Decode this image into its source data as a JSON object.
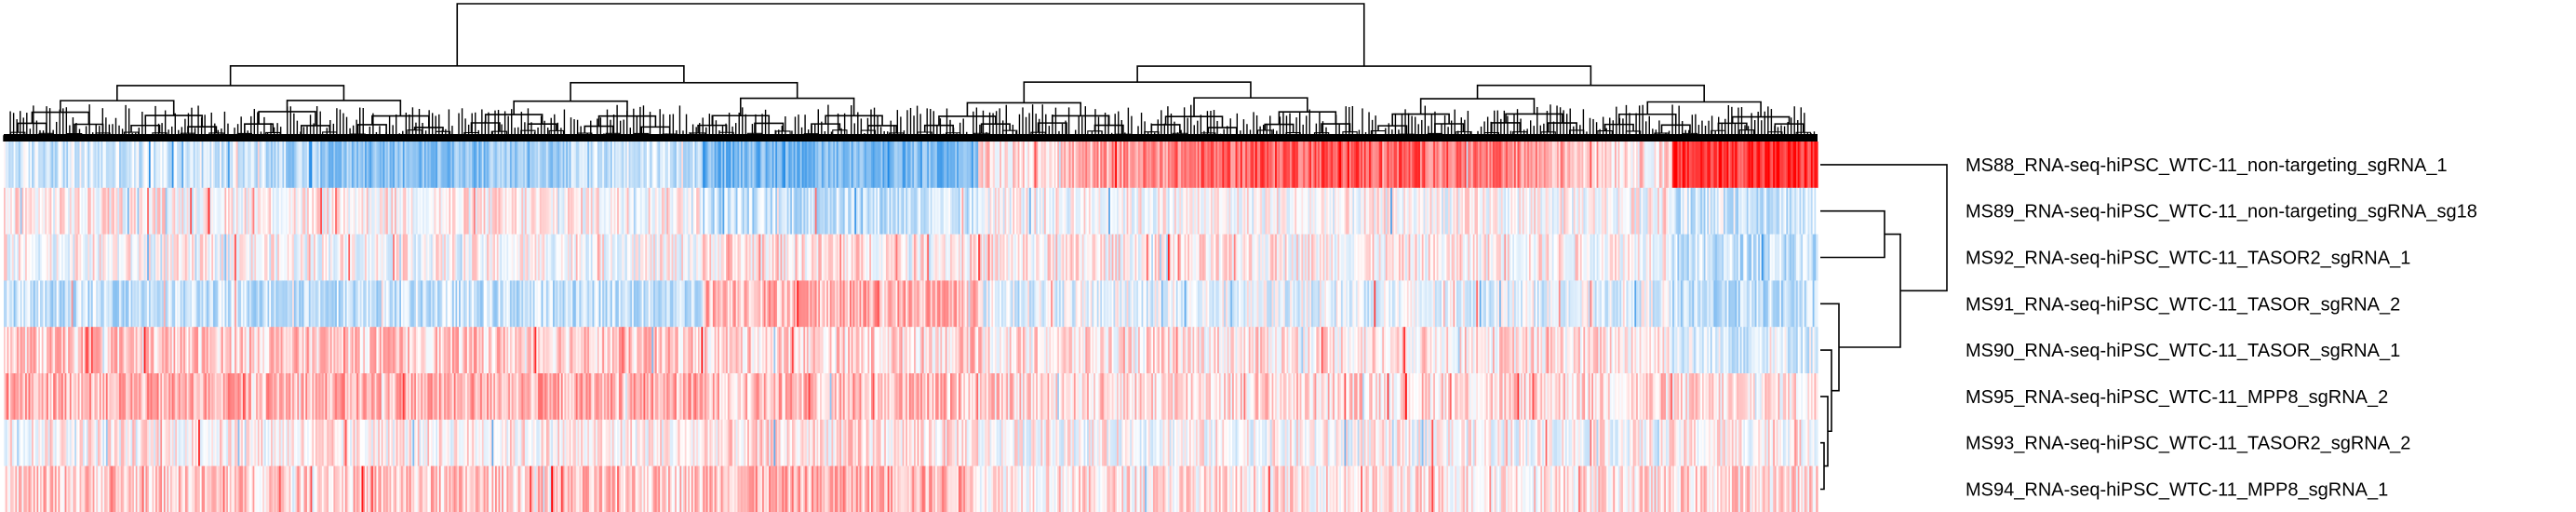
{
  "chart_data": {
    "type": "heatmap",
    "title": "",
    "xlabel": "",
    "ylabel": "",
    "legend": "none",
    "colors": {
      "low": "#1e88e5",
      "mid": "#ffffff",
      "high": "#ff0000",
      "dendrogram": "#000000"
    },
    "value_range": [
      -1,
      1
    ],
    "column_count": 1100,
    "column_cluster_boundaries": [
      0.385,
      0.537,
      0.92
    ],
    "rows": [
      {
        "label": "MS88_RNA-seq-hiPSC_WTC-11_non-targeting_sgRNA_1",
        "segment_means": [
          -0.2,
          -0.6,
          0.1,
          0.8,
          0.3
        ]
      },
      {
        "label": "MS89_RNA-seq-hiPSC_WTC-11_non-targeting_sgRNA_sg18",
        "segment_means": [
          0.05,
          -0.25,
          0.0,
          -0.2,
          -0.15
        ]
      },
      {
        "label": "MS92_RNA-seq-hiPSC_WTC-11_TASOR2_sgRNA_1",
        "segment_means": [
          0.0,
          0.1,
          0.05,
          -0.25,
          -0.1
        ]
      },
      {
        "label": "MS91_RNA-seq-hiPSC_WTC-11_TASOR_sgRNA_2",
        "segment_means": [
          -0.25,
          0.3,
          -0.1,
          -0.3,
          0.3
        ]
      },
      {
        "label": "MS90_RNA-seq-hiPSC_WTC-11_TASOR_sgRNA_1",
        "segment_means": [
          0.2,
          0.15,
          0.1,
          -0.15,
          0.1
        ]
      },
      {
        "label": "MS95_RNA-seq-hiPSC_WTC-11_MPP8_sgRNA_2",
        "segment_means": [
          0.3,
          0.25,
          0.15,
          0.1,
          0.2
        ]
      },
      {
        "label": "MS93_RNA-seq-hiPSC_WTC-11_TASOR2_sgRNA_2",
        "segment_means": [
          0.05,
          0.1,
          0.0,
          0.05,
          0.1
        ]
      },
      {
        "label": "MS94_RNA-seq-hiPSC_WTC-11_MPP8_sgRNA_1",
        "segment_means": [
          0.2,
          0.3,
          0.1,
          0.15,
          0.25
        ]
      }
    ]
  }
}
